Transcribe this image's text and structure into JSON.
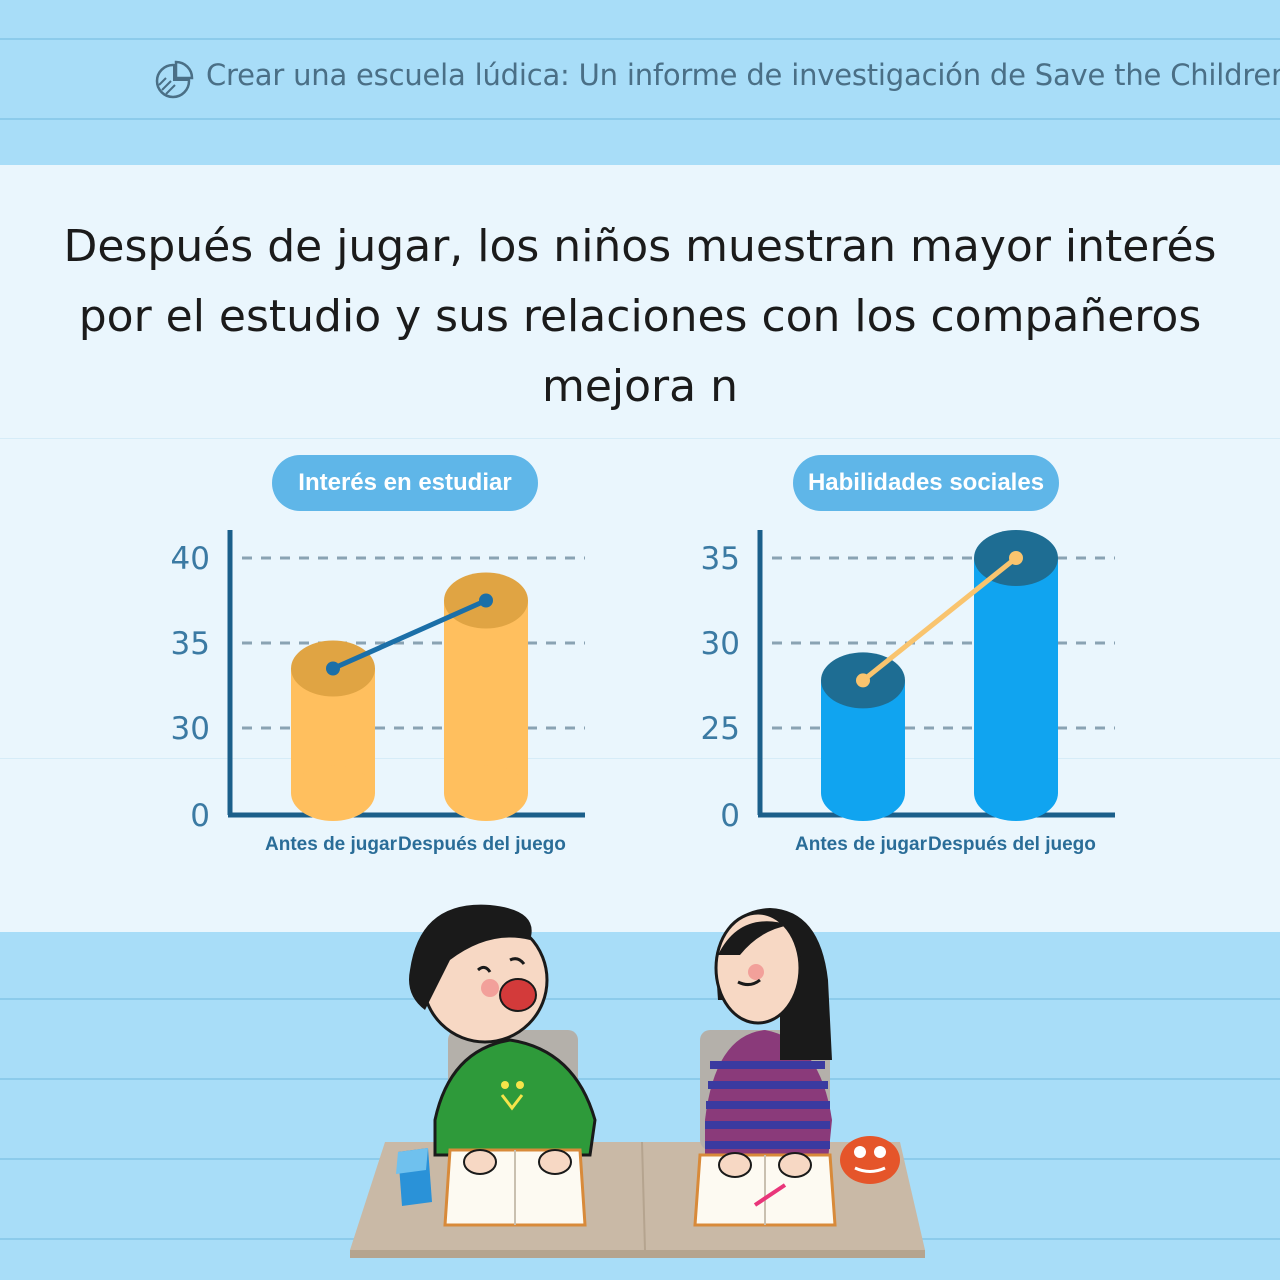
{
  "header": {
    "title": "Crear una escuela lúdica: Un informe de investigación de Save the Children",
    "icon": "pie-chart-icon"
  },
  "title": "Después de jugar, los niños muestran mayor interés por el estudio y sus relaciones con los compañeros mejora n",
  "colors": {
    "background": "#a8ddf8",
    "panel": "#eaf6fd",
    "pill": "#5fb6e8",
    "chart1_bar": "#ffbf5e",
    "chart1_top": "#e0a443",
    "chart1_line": "#1b6fa8",
    "chart2_bar": "#10a4f0",
    "chart2_top": "#1e6d93",
    "chart2_line": "#f9c46e",
    "axis": "#1b5f8a"
  },
  "chart_data": [
    {
      "type": "bar",
      "title": "Interés en estudiar",
      "categories": [
        "Antes de jugar",
        "Después del juego"
      ],
      "values": [
        33.5,
        37.5
      ],
      "yticks": [
        0,
        30,
        35,
        40
      ],
      "ylim": [
        0,
        40
      ],
      "grid": true,
      "broken_axis": true
    },
    {
      "type": "bar",
      "title": "Habilidades sociales",
      "categories": [
        "Antes de jugar",
        "Después del juego"
      ],
      "values": [
        27.8,
        35
      ],
      "yticks": [
        0,
        25,
        30,
        35
      ],
      "ylim": [
        0,
        35
      ],
      "grid": true,
      "broken_axis": true
    }
  ],
  "illustration": {
    "subject": "children-studying-at-desk"
  }
}
